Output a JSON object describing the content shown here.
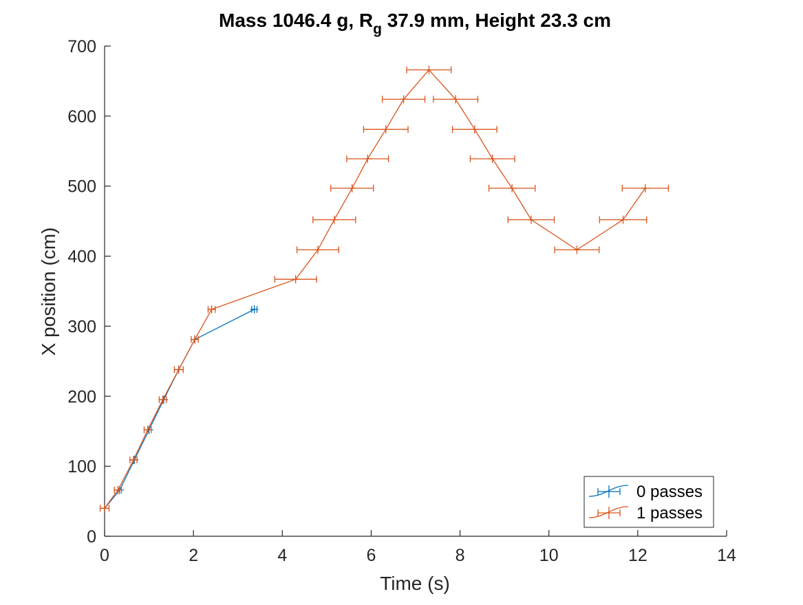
{
  "chart_data": {
    "type": "line",
    "title_parts": {
      "pre": "Mass 1046.4 g, R",
      "sub": "g",
      "post": " 37.9 mm,  Height 23.3 cm"
    },
    "xlabel": "Time (s)",
    "ylabel": "X position (cm)",
    "xlim": [
      0,
      14
    ],
    "ylim": [
      0,
      700
    ],
    "xticks": [
      0,
      2,
      4,
      6,
      8,
      10,
      12,
      14
    ],
    "yticks": [
      0,
      100,
      200,
      300,
      400,
      500,
      600,
      700
    ],
    "grid": false,
    "legend_position": "bottom-right",
    "series": [
      {
        "name": "0 passes",
        "color": "#0072BD",
        "points": [
          {
            "x": 0.0,
            "y": 40,
            "err": 0.0
          },
          {
            "x": 0.34,
            "y": 66,
            "err": 0.0
          },
          {
            "x": 0.67,
            "y": 109,
            "err": 0.0
          },
          {
            "x": 1.0,
            "y": 152,
            "err": 0.0
          },
          {
            "x": 1.33,
            "y": 195,
            "err": 0.0
          },
          {
            "x": 1.67,
            "y": 238,
            "err": 0.0
          },
          {
            "x": 2.03,
            "y": 281,
            "err": 0.0
          },
          {
            "x": 3.37,
            "y": 324,
            "err": 0.06
          }
        ]
      },
      {
        "name": "1 passes",
        "color": "#D95319",
        "points": [
          {
            "x": 0.0,
            "y": 40,
            "err": 0.1
          },
          {
            "x": 0.3,
            "y": 66,
            "err": 0.08
          },
          {
            "x": 0.65,
            "y": 109,
            "err": 0.08
          },
          {
            "x": 0.97,
            "y": 152,
            "err": 0.08
          },
          {
            "x": 1.31,
            "y": 195,
            "err": 0.08
          },
          {
            "x": 1.67,
            "y": 238,
            "err": 0.1
          },
          {
            "x": 2.03,
            "y": 281,
            "err": 0.08
          },
          {
            "x": 2.41,
            "y": 324,
            "err": 0.08
          },
          {
            "x": 4.3,
            "y": 367,
            "err": 0.47
          },
          {
            "x": 4.8,
            "y": 409,
            "err": 0.47
          },
          {
            "x": 5.17,
            "y": 452,
            "err": 0.48
          },
          {
            "x": 5.57,
            "y": 497,
            "err": 0.48
          },
          {
            "x": 5.92,
            "y": 539,
            "err": 0.47
          },
          {
            "x": 6.33,
            "y": 581,
            "err": 0.5
          },
          {
            "x": 6.73,
            "y": 624,
            "err": 0.48
          },
          {
            "x": 7.3,
            "y": 666,
            "err": 0.5
          },
          {
            "x": 7.9,
            "y": 624,
            "err": 0.5
          },
          {
            "x": 8.33,
            "y": 581,
            "err": 0.5
          },
          {
            "x": 8.73,
            "y": 539,
            "err": 0.5
          },
          {
            "x": 9.17,
            "y": 497,
            "err": 0.52
          },
          {
            "x": 9.6,
            "y": 452,
            "err": 0.52
          },
          {
            "x": 10.63,
            "y": 409,
            "err": 0.5
          },
          {
            "x": 11.67,
            "y": 452,
            "err": 0.53
          },
          {
            "x": 12.17,
            "y": 497,
            "err": 0.52
          }
        ]
      }
    ]
  }
}
